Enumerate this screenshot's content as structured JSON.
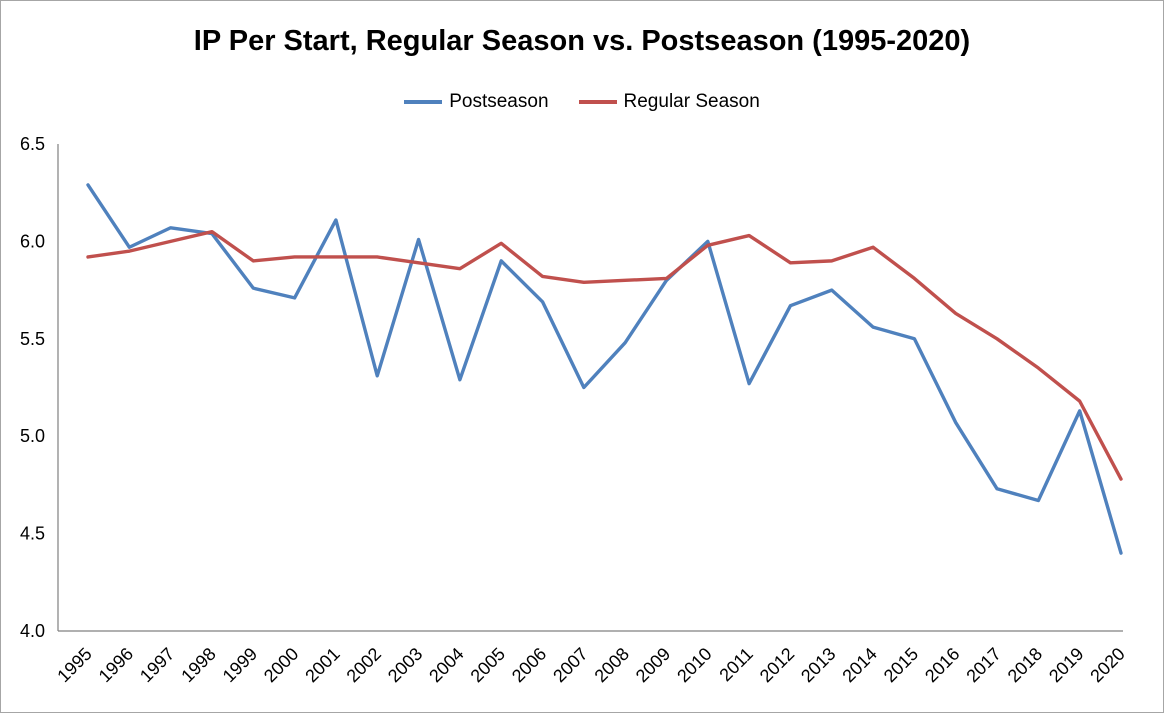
{
  "title": "IP Per Start, Regular Season vs. Postseason (1995-2020)",
  "legend": [
    {
      "label": "Postseason",
      "color": "#4f81bd"
    },
    {
      "label": "Regular Season",
      "color": "#c0504d"
    }
  ],
  "chart_data": {
    "type": "line",
    "title": "IP Per Start, Regular Season vs. Postseason (1995-2020)",
    "xlabel": "",
    "ylabel": "",
    "x": [
      1995,
      1996,
      1997,
      1998,
      1999,
      2000,
      2001,
      2002,
      2003,
      2004,
      2005,
      2006,
      2007,
      2008,
      2009,
      2010,
      2011,
      2012,
      2013,
      2014,
      2015,
      2016,
      2017,
      2018,
      2019,
      2020
    ],
    "series": [
      {
        "name": "Postseason",
        "color": "#4f81bd",
        "values": [
          6.29,
          5.97,
          6.07,
          6.04,
          5.76,
          5.71,
          6.11,
          5.31,
          6.01,
          5.29,
          5.9,
          5.69,
          5.25,
          5.48,
          5.8,
          6.0,
          5.27,
          5.67,
          5.75,
          5.56,
          5.5,
          5.07,
          4.73,
          4.67,
          5.13,
          4.4
        ]
      },
      {
        "name": "Regular Season",
        "color": "#c0504d",
        "values": [
          5.92,
          5.95,
          6.0,
          6.05,
          5.9,
          5.92,
          5.92,
          5.92,
          5.89,
          5.86,
          5.99,
          5.82,
          5.79,
          5.8,
          5.81,
          5.98,
          6.03,
          5.89,
          5.9,
          5.97,
          5.81,
          5.63,
          5.5,
          5.35,
          5.18,
          4.78
        ]
      }
    ],
    "ylim": [
      4.0,
      6.5
    ],
    "yticks": [
      4.0,
      4.5,
      5.0,
      5.5,
      6.0,
      6.5
    ],
    "grid": false,
    "legend_position": "top",
    "axis_color": "#808080",
    "tick_label_color": "#000000"
  }
}
